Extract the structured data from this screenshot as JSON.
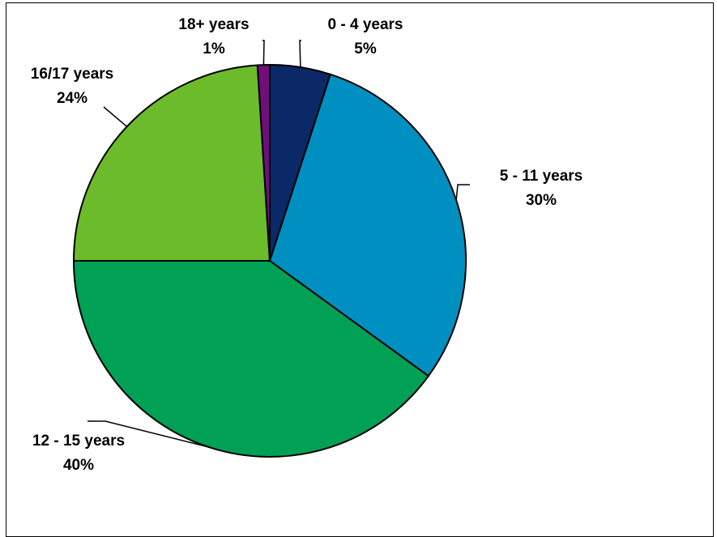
{
  "chart_data": {
    "type": "pie",
    "title": "",
    "slices": [
      {
        "label": "0 - 4 years",
        "value": 5,
        "value_label": "5%",
        "color": "#0B2966"
      },
      {
        "label": "5 - 11 years",
        "value": 30,
        "value_label": "30%",
        "color": "#008FC1"
      },
      {
        "label": "12 - 15 years",
        "value": 40,
        "value_label": "40%",
        "color": "#00A055"
      },
      {
        "label": "16/17 years",
        "value": 24,
        "value_label": "24%",
        "color": "#6BBB2B"
      },
      {
        "label": "18+ years",
        "value": 1,
        "value_label": "1%",
        "color": "#6F0F7A"
      }
    ],
    "legend": "none"
  }
}
